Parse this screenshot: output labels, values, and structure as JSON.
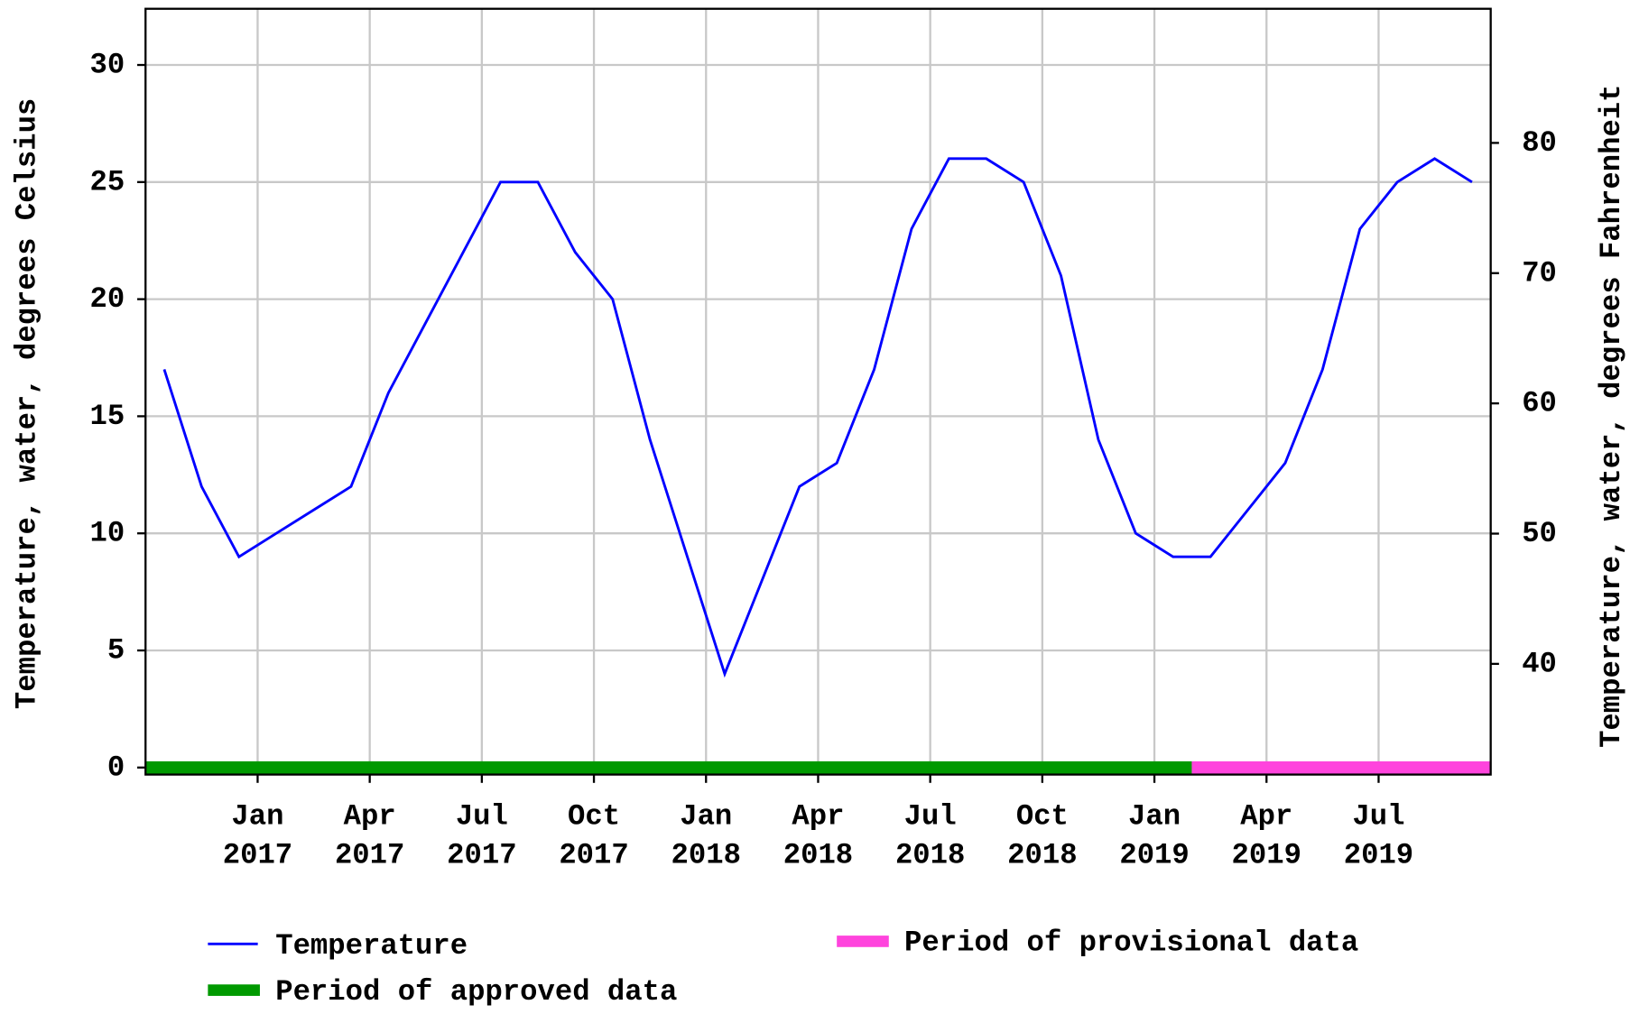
{
  "chart_data": {
    "type": "line",
    "y_label": "Temperature, water, degrees Celsius",
    "y2_label": "Temperature, water, degrees Fahrenheit",
    "x": [
      "2016-10",
      "2016-11",
      "2016-12",
      "2017-01",
      "2017-02",
      "2017-03",
      "2017-04",
      "2017-05",
      "2017-06",
      "2017-07",
      "2017-08",
      "2017-09",
      "2017-10",
      "2017-11",
      "2017-12",
      "2018-01",
      "2018-02",
      "2018-03",
      "2018-04",
      "2018-05",
      "2018-06",
      "2018-07",
      "2018-08",
      "2018-09",
      "2018-10",
      "2018-11",
      "2018-12",
      "2019-01",
      "2019-02",
      "2019-03",
      "2019-04",
      "2019-05",
      "2019-06",
      "2019-07",
      "2019-08",
      "2019-09"
    ],
    "series": [
      {
        "name": "Temperature",
        "color": "#0000ff",
        "values": [
          17,
          12,
          9,
          10,
          11,
          12,
          16,
          19,
          22,
          25,
          25,
          22,
          20,
          14,
          9,
          4,
          8,
          12,
          13,
          17,
          23,
          26,
          26,
          25,
          21,
          14,
          10,
          9,
          9,
          11,
          13,
          17,
          23,
          25,
          26,
          25
        ]
      }
    ],
    "periods": [
      {
        "name": "Period of approved data",
        "color": "#009900",
        "start": "2016-10",
        "end": "2019-01"
      },
      {
        "name": "Period of provisional data",
        "color": "#ff44dd",
        "start": "2019-02",
        "end": "2019-09"
      }
    ],
    "xlim": [
      "2016-10",
      "2019-09"
    ],
    "xticks": [
      {
        "value": "2017-01",
        "label": "Jan 2017"
      },
      {
        "value": "2017-04",
        "label": "Apr 2017"
      },
      {
        "value": "2017-07",
        "label": "Jul 2017"
      },
      {
        "value": "2017-10",
        "label": "Oct 2017"
      },
      {
        "value": "2018-01",
        "label": "Jan 2018"
      },
      {
        "value": "2018-04",
        "label": "Apr 2018"
      },
      {
        "value": "2018-07",
        "label": "Jul 2018"
      },
      {
        "value": "2018-10",
        "label": "Oct 2018"
      },
      {
        "value": "2019-01",
        "label": "Jan 2019"
      },
      {
        "value": "2019-04",
        "label": "Apr 2019"
      },
      {
        "value": "2019-07",
        "label": "Jul 2019"
      }
    ],
    "ylim": [
      -0.3,
      32.4
    ],
    "yticks": [
      0,
      5,
      10,
      15,
      20,
      25,
      30
    ],
    "y2lim": [
      31.5,
      90.3
    ],
    "y2ticks": [
      40,
      50,
      60,
      70,
      80
    ],
    "grid": true
  }
}
